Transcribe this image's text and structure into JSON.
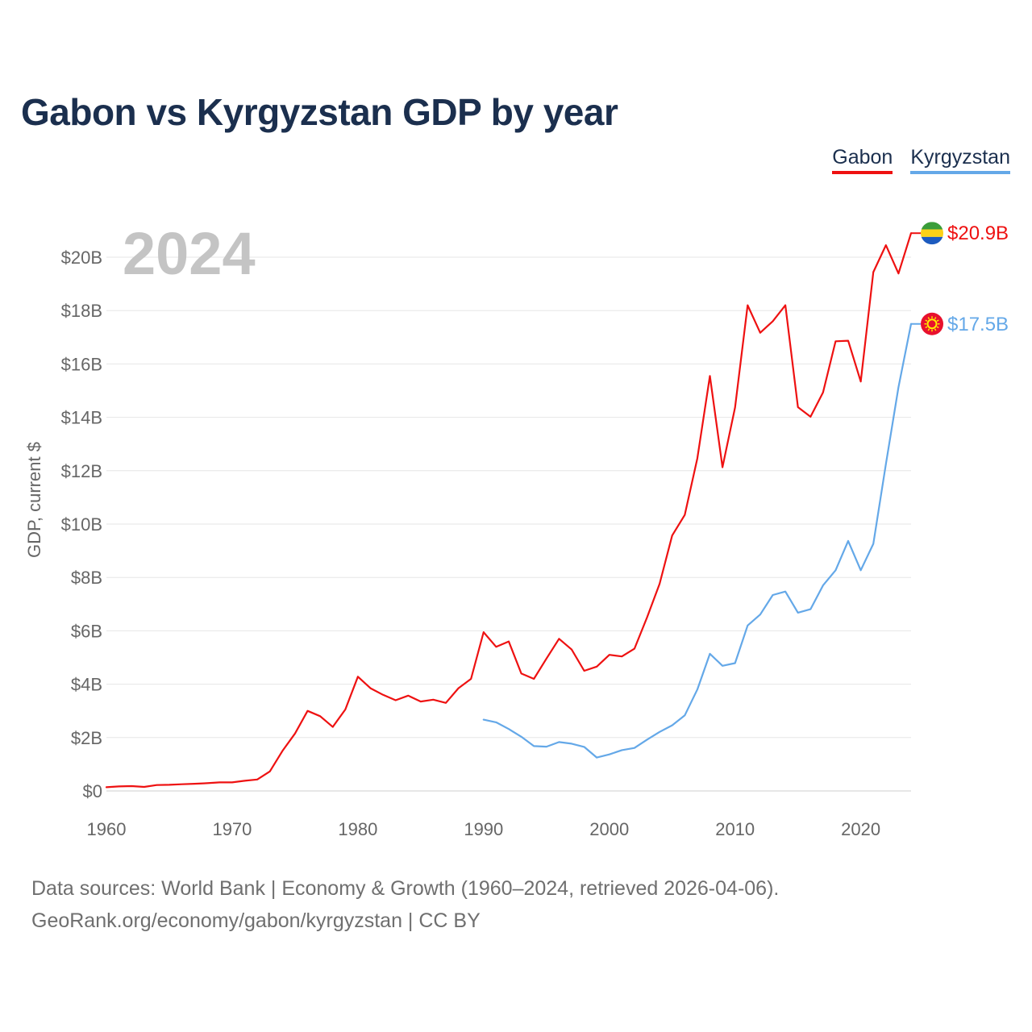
{
  "title": "Gabon vs Kyrgyzstan GDP by year",
  "legend": [
    {
      "name": "Gabon",
      "color": "#ee1111"
    },
    {
      "name": "Kyrgyzstan",
      "color": "#64a8e8"
    }
  ],
  "footer": {
    "line1": "Data sources: World Bank | Economy & Growth (1960–2024, retrieved 2026-04-06).",
    "line2": "GeoRank.org/economy/gabon/kyrgyzstan | CC BY"
  },
  "chart_data": {
    "type": "line",
    "title": "Gabon vs Kyrgyzstan GDP by year",
    "xlabel": "",
    "ylabel": "GDP, current $",
    "year_label": "2024",
    "xlim": [
      1960,
      2024
    ],
    "ylim": [
      0,
      21
    ],
    "x_ticks": [
      1960,
      1970,
      1980,
      1990,
      2000,
      2010,
      2020
    ],
    "x_tick_labels": [
      "1960",
      "1970",
      "1980",
      "1990",
      "2000",
      "2010",
      "2020"
    ],
    "y_ticks": [
      0,
      2,
      4,
      6,
      8,
      10,
      12,
      14,
      16,
      18,
      20
    ],
    "y_tick_labels": [
      "$0",
      "$2B",
      "$4B",
      "$6B",
      "$8B",
      "$10B",
      "$12B",
      "$14B",
      "$16B",
      "$18B",
      "$20B"
    ],
    "grid": true,
    "legend_position": "top-right",
    "units": "billion current US$",
    "series": [
      {
        "name": "Gabon",
        "color": "#ee1111",
        "flag": "gabon-flag-icon",
        "end_label": "$20.9B",
        "x": [
          1960,
          1961,
          1962,
          1963,
          1964,
          1965,
          1966,
          1967,
          1968,
          1969,
          1970,
          1971,
          1972,
          1973,
          1974,
          1975,
          1976,
          1977,
          1978,
          1979,
          1980,
          1981,
          1982,
          1983,
          1984,
          1985,
          1986,
          1987,
          1988,
          1989,
          1990,
          1991,
          1992,
          1993,
          1994,
          1995,
          1996,
          1997,
          1998,
          1999,
          2000,
          2001,
          2002,
          2003,
          2004,
          2005,
          2006,
          2007,
          2008,
          2009,
          2010,
          2011,
          2012,
          2013,
          2014,
          2015,
          2016,
          2017,
          2018,
          2019,
          2020,
          2021,
          2022,
          2023,
          2024
        ],
        "values": [
          0.14,
          0.17,
          0.18,
          0.15,
          0.22,
          0.23,
          0.25,
          0.27,
          0.29,
          0.32,
          0.32,
          0.38,
          0.43,
          0.73,
          1.5,
          2.15,
          3.0,
          2.8,
          2.4,
          3.05,
          4.28,
          3.85,
          3.6,
          3.4,
          3.57,
          3.35,
          3.42,
          3.3,
          3.85,
          4.2,
          5.95,
          5.4,
          5.6,
          4.4,
          4.2,
          4.96,
          5.7,
          5.3,
          4.5,
          4.66,
          5.1,
          5.04,
          5.33,
          6.5,
          7.76,
          9.57,
          10.34,
          12.46,
          15.55,
          12.13,
          14.37,
          18.2,
          17.17,
          17.6,
          18.2,
          14.38,
          14.02,
          14.93,
          16.85,
          16.87,
          15.34,
          19.44,
          20.45,
          19.39,
          20.9
        ]
      },
      {
        "name": "Kyrgyzstan",
        "color": "#64a8e8",
        "flag": "kyrgyzstan-flag-icon",
        "end_label": "$17.5B",
        "x": [
          1990,
          1991,
          1992,
          1993,
          1994,
          1995,
          1996,
          1997,
          1998,
          1999,
          2000,
          2001,
          2002,
          2003,
          2004,
          2005,
          2006,
          2007,
          2008,
          2009,
          2010,
          2011,
          2012,
          2013,
          2014,
          2015,
          2016,
          2017,
          2018,
          2019,
          2020,
          2021,
          2022,
          2023,
          2024
        ],
        "values": [
          2.67,
          2.57,
          2.32,
          2.03,
          1.68,
          1.66,
          1.83,
          1.77,
          1.65,
          1.25,
          1.37,
          1.53,
          1.61,
          1.92,
          2.21,
          2.46,
          2.83,
          3.8,
          5.14,
          4.69,
          4.79,
          6.2,
          6.61,
          7.34,
          7.47,
          6.68,
          6.81,
          7.7,
          8.27,
          9.37,
          8.27,
          9.26,
          12.25,
          15.13,
          17.5
        ]
      }
    ]
  }
}
